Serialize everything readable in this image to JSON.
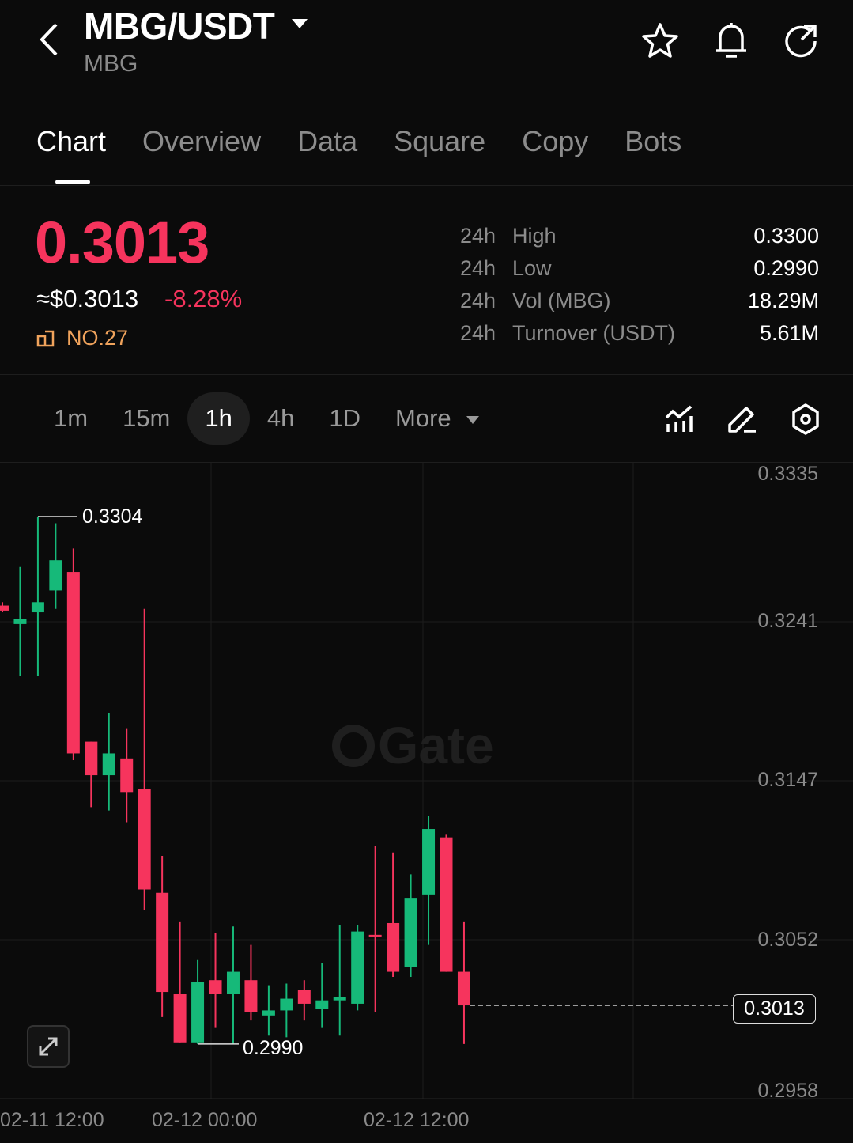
{
  "header": {
    "title": "MBG/USDT",
    "subtitle": "MBG",
    "icons": [
      "back-icon",
      "caret-down-icon",
      "star-icon",
      "bell-icon",
      "share-icon"
    ]
  },
  "tabs": [
    {
      "label": "Chart",
      "active": true
    },
    {
      "label": "Overview"
    },
    {
      "label": "Data"
    },
    {
      "label": "Square"
    },
    {
      "label": "Copy"
    },
    {
      "label": "Bots"
    }
  ],
  "ticker": {
    "price": "0.3013",
    "usd": "≈$0.3013",
    "change": "-8.28%",
    "rank": "NO.27",
    "stats": [
      {
        "k": "24h",
        "l": "High",
        "v": "0.3300"
      },
      {
        "k": "24h",
        "l": "Low",
        "v": "0.2990"
      },
      {
        "k": "24h",
        "l": "Vol (MBG)",
        "v": "18.29M"
      },
      {
        "k": "24h",
        "l": "Turnover (USDT)",
        "v": "5.61M"
      }
    ]
  },
  "intervals": {
    "items": [
      "1m",
      "15m",
      "1h",
      "4h",
      "1D"
    ],
    "selected": "1h",
    "more": "More"
  },
  "colors": {
    "up": "#16b979",
    "down": "#f6345d",
    "bg": "#0b0b0b",
    "rank": "#f0a35c"
  },
  "watermark": "Gate",
  "chart_data": {
    "type": "candlestick",
    "ylim": [
      0.2957,
      0.3336
    ],
    "y_ticks": [
      "0.3335",
      "0.3241",
      "0.3147",
      "0.3052",
      "0.2958"
    ],
    "x_ticks": [
      "02-11 12:00",
      "02-12 00:00",
      "02-12 12:00"
    ],
    "high_label": "0.3304",
    "low_label": "0.2990",
    "last_price": "0.3013",
    "candles": [
      [
        0.3251,
        0.3253,
        0.3247,
        0.3248
      ],
      [
        0.324,
        0.3274,
        0.3209,
        0.3243
      ],
      [
        0.3247,
        0.3304,
        0.3209,
        0.3253
      ],
      [
        0.326,
        0.33,
        0.3249,
        0.3278
      ],
      [
        0.3271,
        0.3285,
        0.3159,
        0.3163
      ],
      [
        0.317,
        0.317,
        0.3131,
        0.315
      ],
      [
        0.315,
        0.3187,
        0.3129,
        0.3163
      ],
      [
        0.316,
        0.3178,
        0.3122,
        0.314
      ],
      [
        0.3142,
        0.3249,
        0.307,
        0.3082
      ],
      [
        0.308,
        0.3102,
        0.3006,
        0.3021
      ],
      [
        0.302,
        0.3063,
        0.2991,
        0.2991
      ],
      [
        0.2991,
        0.304,
        0.299,
        0.3027
      ],
      [
        0.3028,
        0.3056,
        0.3,
        0.302
      ],
      [
        0.302,
        0.306,
        0.299,
        0.3033
      ],
      [
        0.3028,
        0.3049,
        0.3004,
        0.3009
      ],
      [
        0.3007,
        0.3025,
        0.2995,
        0.301
      ],
      [
        0.301,
        0.3026,
        0.2994,
        0.3017
      ],
      [
        0.3022,
        0.3028,
        0.3004,
        0.3014
      ],
      [
        0.3011,
        0.3038,
        0.3,
        0.3016
      ],
      [
        0.3016,
        0.3061,
        0.2995,
        0.3018
      ],
      [
        0.3014,
        0.3061,
        0.301,
        0.3057
      ],
      [
        0.3055,
        0.3108,
        0.3009,
        0.3054
      ],
      [
        0.3062,
        0.3104,
        0.303,
        0.3033
      ],
      [
        0.3036,
        0.3091,
        0.303,
        0.3077
      ],
      [
        0.3079,
        0.3126,
        0.3049,
        0.3118
      ],
      [
        0.3113,
        0.3115,
        0.3033,
        0.3033
      ],
      [
        0.3033,
        0.3063,
        0.299,
        0.3013
      ]
    ]
  }
}
